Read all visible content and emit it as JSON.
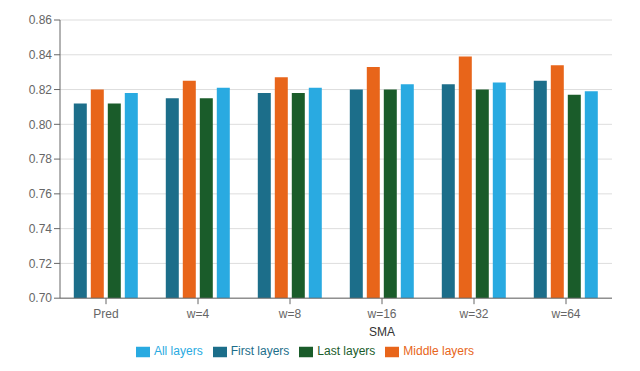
{
  "chart_data": {
    "type": "bar",
    "categories": [
      "Pred",
      "w=4",
      "w=8",
      "w=16",
      "w=32",
      "w=64"
    ],
    "series": [
      {
        "name": "First layers",
        "color": "#1c6e8a",
        "values": [
          0.812,
          0.815,
          0.818,
          0.82,
          0.823,
          0.825
        ]
      },
      {
        "name": "Middle layers",
        "color": "#e8651a",
        "values": [
          0.82,
          0.825,
          0.827,
          0.833,
          0.839,
          0.834
        ]
      },
      {
        "name": "Last layers",
        "color": "#1a5c2a",
        "values": [
          0.812,
          0.815,
          0.818,
          0.82,
          0.82,
          0.817
        ]
      },
      {
        "name": "All layers",
        "color": "#29aae1",
        "values": [
          0.818,
          0.821,
          0.821,
          0.823,
          0.824,
          0.819
        ]
      }
    ],
    "ylim": [
      0.7,
      0.86
    ],
    "yticks": [
      {
        "value": 0.7,
        "label": "0.70"
      },
      0.72,
      0.74,
      0.76,
      0.78,
      {
        "value": 0.8,
        "label": "0.80"
      },
      0.82,
      0.84,
      0.86
    ],
    "grid": true,
    "legend": "bottom",
    "annotations": [
      "SMA"
    ]
  }
}
